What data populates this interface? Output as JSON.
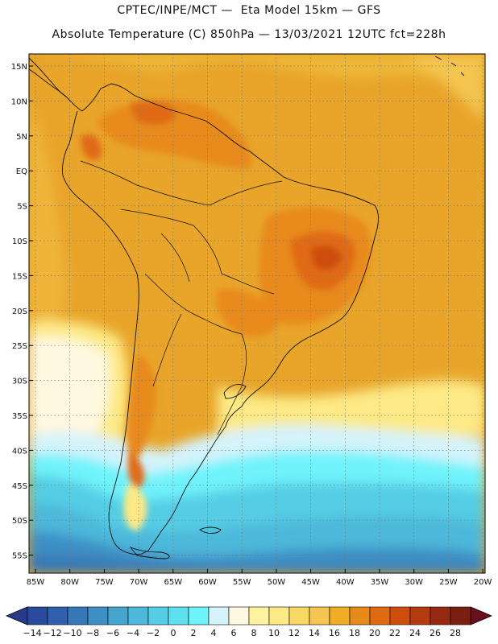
{
  "header": {
    "line1": "CPTEC/INPE/MCT —  Eta Model 15km — GFS",
    "line2": "Absolute Temperature (C) 850hPa — 13/03/2021 12UTC fct=228h"
  },
  "map": {
    "lat_labels": [
      "15N",
      "10N",
      "5N",
      "EQ",
      "5S",
      "10S",
      "15S",
      "20S",
      "25S",
      "30S",
      "35S",
      "40S",
      "45S",
      "50S",
      "55S"
    ],
    "lon_labels": [
      "85W",
      "80W",
      "75W",
      "70W",
      "65W",
      "60W",
      "55W",
      "50W",
      "45W",
      "40W",
      "35W",
      "30W",
      "25W",
      "20W"
    ],
    "background_color": "#e8a52a"
  },
  "colorbar": {
    "labels": [
      "-14",
      "-12",
      "-10",
      "-8",
      "-6",
      "-4",
      "-2",
      "0",
      "2",
      "4",
      "6",
      "8",
      "10",
      "12",
      "14",
      "16",
      "18",
      "20",
      "22",
      "24",
      "26",
      "28"
    ],
    "colors": [
      "#2a4a9e",
      "#2f5fae",
      "#3577b8",
      "#3d8fc4",
      "#45a5cf",
      "#4db8da",
      "#55cde4",
      "#5fe0ee",
      "#6ff3fb",
      "#d4f3fb",
      "#fff8e0",
      "#fff3a0",
      "#fde985",
      "#f8d865",
      "#f4c550",
      "#efae25",
      "#e88a1a",
      "#e06a12",
      "#cc4d0e",
      "#b43a10",
      "#962a10",
      "#7a1e10"
    ],
    "under_color": "#2a3a8a",
    "over_color": "#6a0f1e"
  }
}
